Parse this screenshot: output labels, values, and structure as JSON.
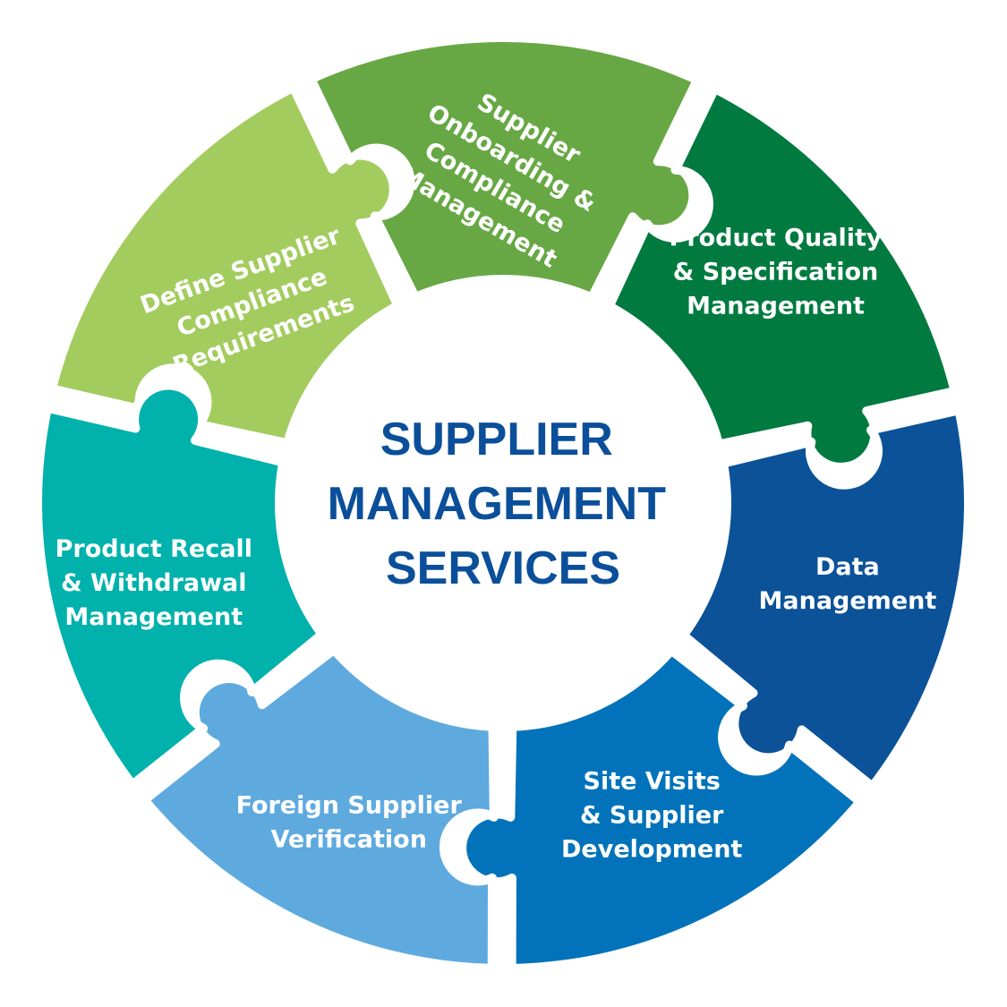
{
  "center_title": [
    "SUPPLIER",
    "MANAGEMENT",
    "SERVICES"
  ],
  "segments": [
    {
      "lines": [
        "Define Supplier",
        "Compliance",
        "Requirements"
      ],
      "color": "#a3cc5f"
    },
    {
      "lines": [
        "Supplier",
        "Onboarding &",
        "Compliance",
        "Management"
      ],
      "color": "#67a844"
    },
    {
      "lines": [
        "Product Quality",
        "& Specification",
        "Management"
      ],
      "color": "#017a40"
    },
    {
      "lines": [
        "Data",
        "Management"
      ],
      "color": "#0b5298"
    },
    {
      "lines": [
        "Site Visits",
        "& Supplier",
        "Development"
      ],
      "color": "#0273ba"
    },
    {
      "lines": [
        "Foreign Supplier",
        "Verification"
      ],
      "color": "#5eaadf"
    },
    {
      "lines": [
        "Product Recall",
        "& Withdrawal",
        "Management"
      ],
      "color": "#00b1ac"
    }
  ]
}
